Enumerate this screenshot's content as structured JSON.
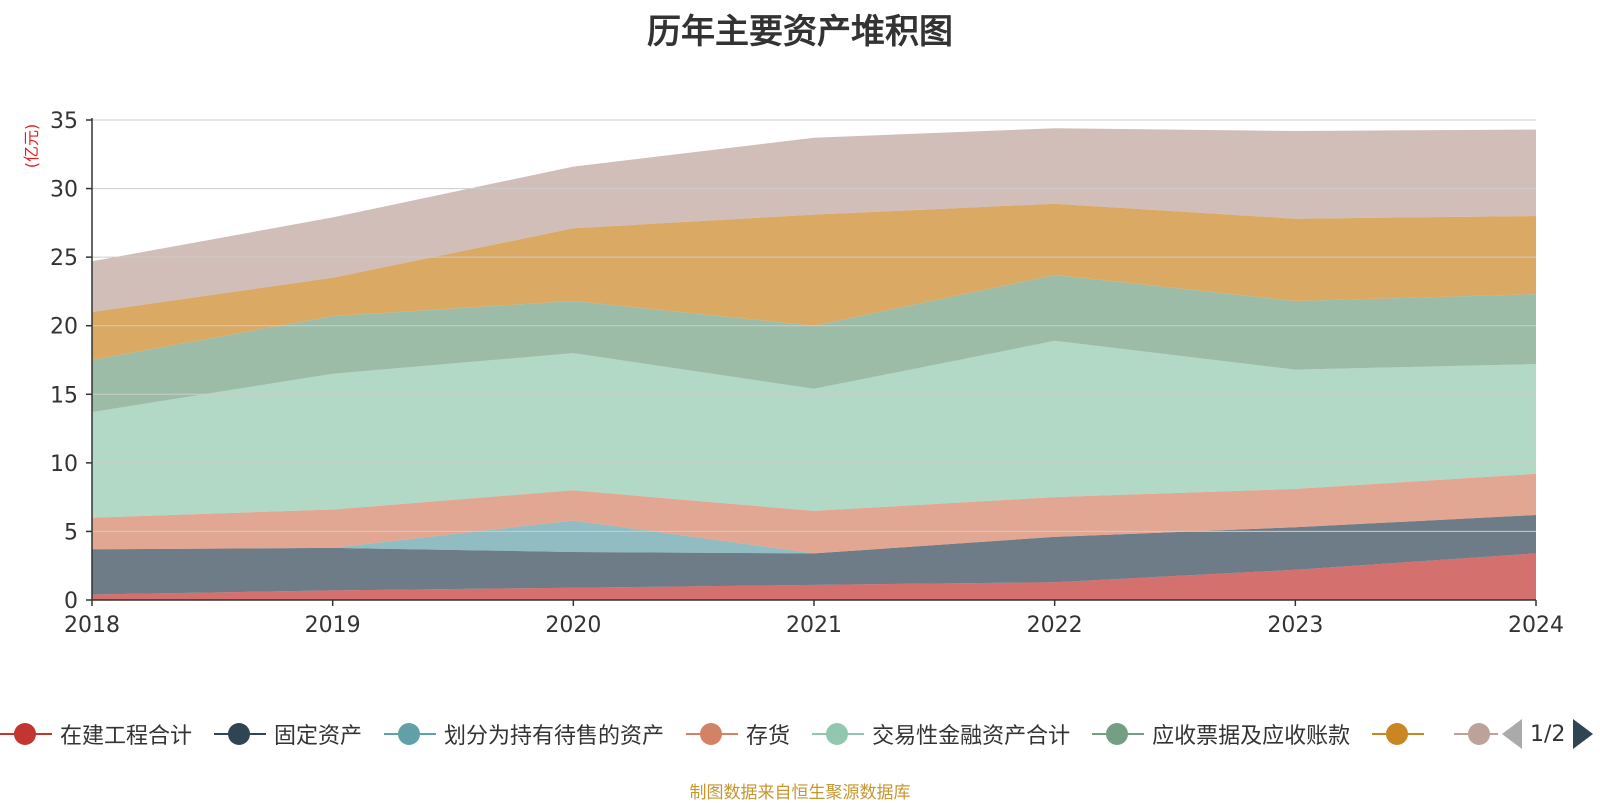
{
  "title": "历年主要资产堆积图",
  "unit": "(亿元)",
  "footer": "制图数据来自恒生聚源数据库",
  "pager": "1/2",
  "chart_data": {
    "type": "area",
    "stacked": true,
    "title": "历年主要资产堆积图",
    "ylabel": "(亿元)",
    "x": [
      "2018",
      "2019",
      "2020",
      "2021",
      "2022",
      "2023",
      "2024"
    ],
    "ylim": [
      0,
      35
    ],
    "yticks": [
      0,
      5,
      10,
      15,
      20,
      25,
      30,
      35
    ],
    "grid": true,
    "legend_position": "bottom",
    "series": [
      {
        "name": "在建工程合计",
        "color": "#c23531",
        "values": [
          0.4,
          0.7,
          0.9,
          1.1,
          1.3,
          2.2,
          3.4
        ]
      },
      {
        "name": "固定资产",
        "color": "#2f4554",
        "values": [
          3.3,
          3.1,
          2.6,
          2.3,
          3.3,
          3.1,
          2.8
        ]
      },
      {
        "name": "划分为持有待售的资产",
        "color": "#61a0a8",
        "values": [
          0,
          0,
          2.3,
          0,
          0,
          0,
          0
        ]
      },
      {
        "name": "存货",
        "color": "#d48265",
        "values": [
          2.3,
          2.8,
          2.2,
          3.1,
          2.9,
          2.8,
          3.0
        ]
      },
      {
        "name": "交易性金融资产合计",
        "color": "#91c7ae",
        "values": [
          7.7,
          9.9,
          10.0,
          8.9,
          11.4,
          8.7,
          8.0
        ]
      },
      {
        "name": "应收票据及应收账款",
        "color": "#749f83",
        "values": [
          3.8,
          4.2,
          3.8,
          4.6,
          4.8,
          5.0,
          5.1
        ]
      },
      {
        "name": "",
        "color": "#ca8622",
        "values": [
          3.5,
          2.8,
          5.3,
          8.1,
          5.2,
          6.0,
          5.7
        ]
      },
      {
        "name": "",
        "color": "#bda29a",
        "values": [
          3.7,
          4.4,
          4.5,
          5.6,
          5.5,
          6.4,
          6.3
        ]
      }
    ]
  }
}
